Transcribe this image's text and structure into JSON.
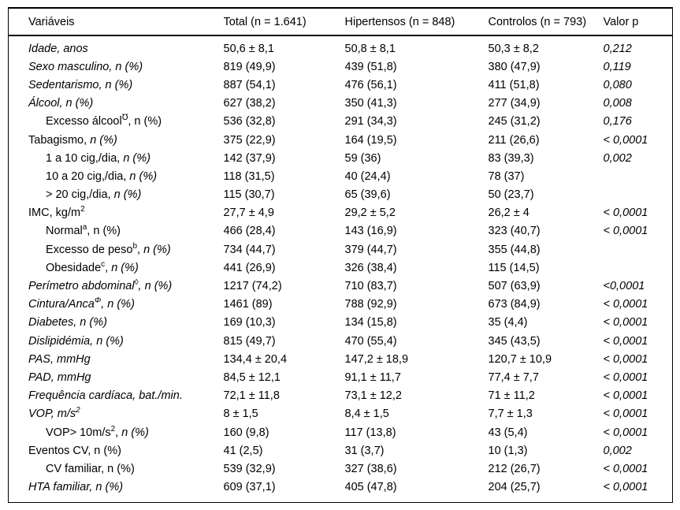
{
  "table": {
    "columns": [
      "Variáveis",
      "Total (n = 1.641)",
      "Hipertensos (n = 848)",
      "Controlos (n = 793)",
      "Valor p"
    ],
    "rows": [
      {
        "indent": false,
        "label": [
          {
            "text": "Idade, anos",
            "italic": true
          }
        ],
        "total": "50,6 ± 8,1",
        "hipertensos": "50,8 ± 8,1",
        "controlos": "50,3 ± 8,2",
        "p": "0,212"
      },
      {
        "indent": false,
        "label": [
          {
            "text": "Sexo masculino, n (%)",
            "italic": true
          }
        ],
        "total": "819 (49,9)",
        "hipertensos": "439 (51,8)",
        "controlos": "380 (47,9)",
        "p": "0,119"
      },
      {
        "indent": false,
        "label": [
          {
            "text": "Sedentarismo, n (%)",
            "italic": true
          }
        ],
        "total": "887 (54,1)",
        "hipertensos": "476 (56,1)",
        "controlos": "411 (51,8)",
        "p": "0,080"
      },
      {
        "indent": false,
        "label": [
          {
            "text": "Álcool, n (%)",
            "italic": true
          }
        ],
        "total": "627 (38,2)",
        "hipertensos": "350 (41,3)",
        "controlos": "277 (34,9)",
        "p": "0,008"
      },
      {
        "indent": true,
        "label": [
          {
            "text": "Excesso álcool",
            "italic": false
          },
          {
            "text": "℧",
            "italic": false,
            "sup": true
          },
          {
            "text": ", n (%)",
            "italic": false
          }
        ],
        "total": "536 (32,8)",
        "hipertensos": "291 (34,3)",
        "controlos": "245 (31,2)",
        "p": "0,176"
      },
      {
        "indent": false,
        "label": [
          {
            "text": "Tabagismo, ",
            "italic": false
          },
          {
            "text": "n (%)",
            "italic": true
          }
        ],
        "total": "375 (22,9)",
        "hipertensos": "164 (19,5)",
        "controlos": "211 (26,6)",
        "p": "< 0,0001"
      },
      {
        "indent": true,
        "label": [
          {
            "text": "1 a 10 cig,/dia, ",
            "italic": false
          },
          {
            "text": "n (%)",
            "italic": true
          }
        ],
        "total": "142 (37,9)",
        "hipertensos": "59 (36)",
        "controlos": "83 (39,3)",
        "p": "0,002"
      },
      {
        "indent": true,
        "label": [
          {
            "text": "10 a 20 cig,/dia, ",
            "italic": false
          },
          {
            "text": "n (%)",
            "italic": true
          }
        ],
        "total": "118 (31,5)",
        "hipertensos": "40 (24,4)",
        "controlos": "78 (37)",
        "p": ""
      },
      {
        "indent": true,
        "label": [
          {
            "text": "> 20 cig,/dia, ",
            "italic": false
          },
          {
            "text": "n (%)",
            "italic": true
          }
        ],
        "total": "115 (30,7)",
        "hipertensos": "65 (39,6)",
        "controlos": "50 (23,7)",
        "p": ""
      },
      {
        "indent": false,
        "label": [
          {
            "text": "IMC, kg/m",
            "italic": false
          },
          {
            "text": "2",
            "italic": false,
            "sup": true
          }
        ],
        "total": "27,7 ± 4,9",
        "hipertensos": "29,2 ± 5,2",
        "controlos": "26,2 ± 4",
        "p": "< 0,0001"
      },
      {
        "indent": true,
        "label": [
          {
            "text": "Normal",
            "italic": false
          },
          {
            "text": "a",
            "italic": false,
            "sup": true
          },
          {
            "text": ", n (%)",
            "italic": false
          }
        ],
        "total": "466 (28,4)",
        "hipertensos": "143 (16,9)",
        "controlos": "323 (40,7)",
        "p": "< 0,0001"
      },
      {
        "indent": true,
        "label": [
          {
            "text": "Excesso de peso",
            "italic": false
          },
          {
            "text": "b",
            "italic": false,
            "sup": true
          },
          {
            "text": ", ",
            "italic": false
          },
          {
            "text": "n (%)",
            "italic": true
          }
        ],
        "total": "734 (44,7)",
        "hipertensos": "379 (44,7)",
        "controlos": "355 (44,8)",
        "p": ""
      },
      {
        "indent": true,
        "label": [
          {
            "text": "Obesidade",
            "italic": false
          },
          {
            "text": "c",
            "italic": false,
            "sup": true
          },
          {
            "text": ", ",
            "italic": false
          },
          {
            "text": "n (%)",
            "italic": true
          }
        ],
        "total": "441 (26,9)",
        "hipertensos": "326 (38,4)",
        "controlos": "115 (14,5)",
        "p": ""
      },
      {
        "indent": false,
        "label": [
          {
            "text": "Perímetro abdominal",
            "italic": true
          },
          {
            "text": "◊",
            "italic": true,
            "sup": true
          },
          {
            "text": ", n (%)",
            "italic": true
          }
        ],
        "total": "1217 (74,2)",
        "hipertensos": "710 (83,7)",
        "controlos": "507 (63,9)",
        "p": "<0,0001"
      },
      {
        "indent": false,
        "label": [
          {
            "text": "Cintura/Anca",
            "italic": true
          },
          {
            "text": "Φ",
            "italic": true,
            "sup": true
          },
          {
            "text": ", n (%)",
            "italic": true
          }
        ],
        "total": "1461 (89)",
        "hipertensos": "788 (92,9)",
        "controlos": "673 (84,9)",
        "p": "< 0,0001"
      },
      {
        "indent": false,
        "label": [
          {
            "text": "Diabetes, n (%)",
            "italic": true
          }
        ],
        "total": "169 (10,3)",
        "hipertensos": "134 (15,8)",
        "controlos": "35 (4,4)",
        "p": "< 0,0001"
      },
      {
        "indent": false,
        "label": [
          {
            "text": "Dislipidémia, n (%)",
            "italic": true
          }
        ],
        "total": "815 (49,7)",
        "hipertensos": "470 (55,4)",
        "controlos": "345 (43,5)",
        "p": "< 0,0001"
      },
      {
        "indent": false,
        "label": [
          {
            "text": "PAS, mmHg",
            "italic": true
          }
        ],
        "total": "134,4 ± 20,4",
        "hipertensos": "147,2 ± 18,9",
        "controlos": "120,7 ± 10,9",
        "p": "< 0,0001"
      },
      {
        "indent": false,
        "label": [
          {
            "text": "PAD, mmHg",
            "italic": true
          }
        ],
        "total": "84,5 ± 12,1",
        "hipertensos": "91,1 ± 11,7",
        "controlos": "77,4 ± 7,7",
        "p": "< 0,0001"
      },
      {
        "indent": false,
        "label": [
          {
            "text": "Frequência cardíaca, bat./min.",
            "italic": true
          }
        ],
        "total": "72,1 ± 11,8",
        "hipertensos": "73,1 ± 12,2",
        "controlos": "71 ± 11,2",
        "p": "< 0,0001"
      },
      {
        "indent": false,
        "label": [
          {
            "text": "VOP, m/s",
            "italic": true
          },
          {
            "text": "2",
            "italic": true,
            "sup": true
          }
        ],
        "total": "8 ± 1,5",
        "hipertensos": "8,4 ± 1,5",
        "controlos": "7,7 ± 1,3",
        "p": "< 0,0001"
      },
      {
        "indent": true,
        "label": [
          {
            "text": "VOP> 10m/s",
            "italic": false
          },
          {
            "text": "2",
            "italic": false,
            "sup": true
          },
          {
            "text": ", ",
            "italic": false
          },
          {
            "text": "n (%)",
            "italic": true
          }
        ],
        "total": "160 (9,8)",
        "hipertensos": "117 (13,8)",
        "controlos": "43 (5,4)",
        "p": "< 0,0001"
      },
      {
        "indent": false,
        "label": [
          {
            "text": "Eventos CV, n (%)",
            "italic": false
          }
        ],
        "total": "41 (2,5)",
        "hipertensos": "31 (3,7)",
        "controlos": "10 (1,3)",
        "p": "0,002"
      },
      {
        "indent": true,
        "label": [
          {
            "text": "CV familiar, n (%)",
            "italic": false
          }
        ],
        "total": "539 (32,9)",
        "hipertensos": "327 (38,6)",
        "controlos": "212 (26,7)",
        "p": "< 0,0001"
      },
      {
        "indent": false,
        "label": [
          {
            "text": "HTA familiar, n (%)",
            "italic": true
          }
        ],
        "total": "609 (37,1)",
        "hipertensos": "405 (47,8)",
        "controlos": "204 (25,7)",
        "p": "< 0,0001"
      }
    ]
  }
}
